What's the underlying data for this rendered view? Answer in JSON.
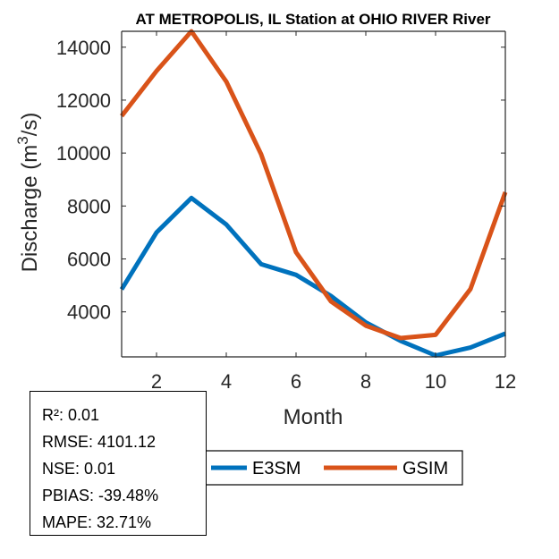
{
  "chart_data": {
    "type": "line",
    "title": "AT METROPOLIS, IL  Station at  OHIO RIVER  River",
    "xlabel": "Month",
    "ylabel_main": "Discharge (m",
    "ylabel_sup": "3",
    "ylabel_end": "/s)",
    "xlim": [
      1,
      12
    ],
    "ylim": [
      2300,
      14600
    ],
    "xticks": [
      2,
      4,
      6,
      8,
      10,
      12
    ],
    "yticks": [
      4000,
      6000,
      8000,
      10000,
      12000,
      14000
    ],
    "grid": false,
    "x": [
      1,
      2,
      3,
      4,
      5,
      6,
      7,
      8,
      9,
      10,
      11,
      12
    ],
    "series": [
      {
        "name": "E3SM",
        "color": "#0072BD",
        "values": [
          4850,
          7000,
          8300,
          7300,
          5800,
          5400,
          4600,
          3600,
          2900,
          2350,
          2650,
          3180
        ]
      },
      {
        "name": "GSIM",
        "color": "#D95319",
        "values": [
          11400,
          13100,
          14600,
          12700,
          9950,
          6250,
          4400,
          3480,
          3010,
          3130,
          4860,
          8520
        ]
      }
    ],
    "legend_position": "bottom"
  },
  "stats": [
    "R²: 0.01",
    "RMSE: 4101.12",
    "NSE: 0.01",
    "PBIAS: -39.48%",
    "MAPE: 32.71%"
  ]
}
